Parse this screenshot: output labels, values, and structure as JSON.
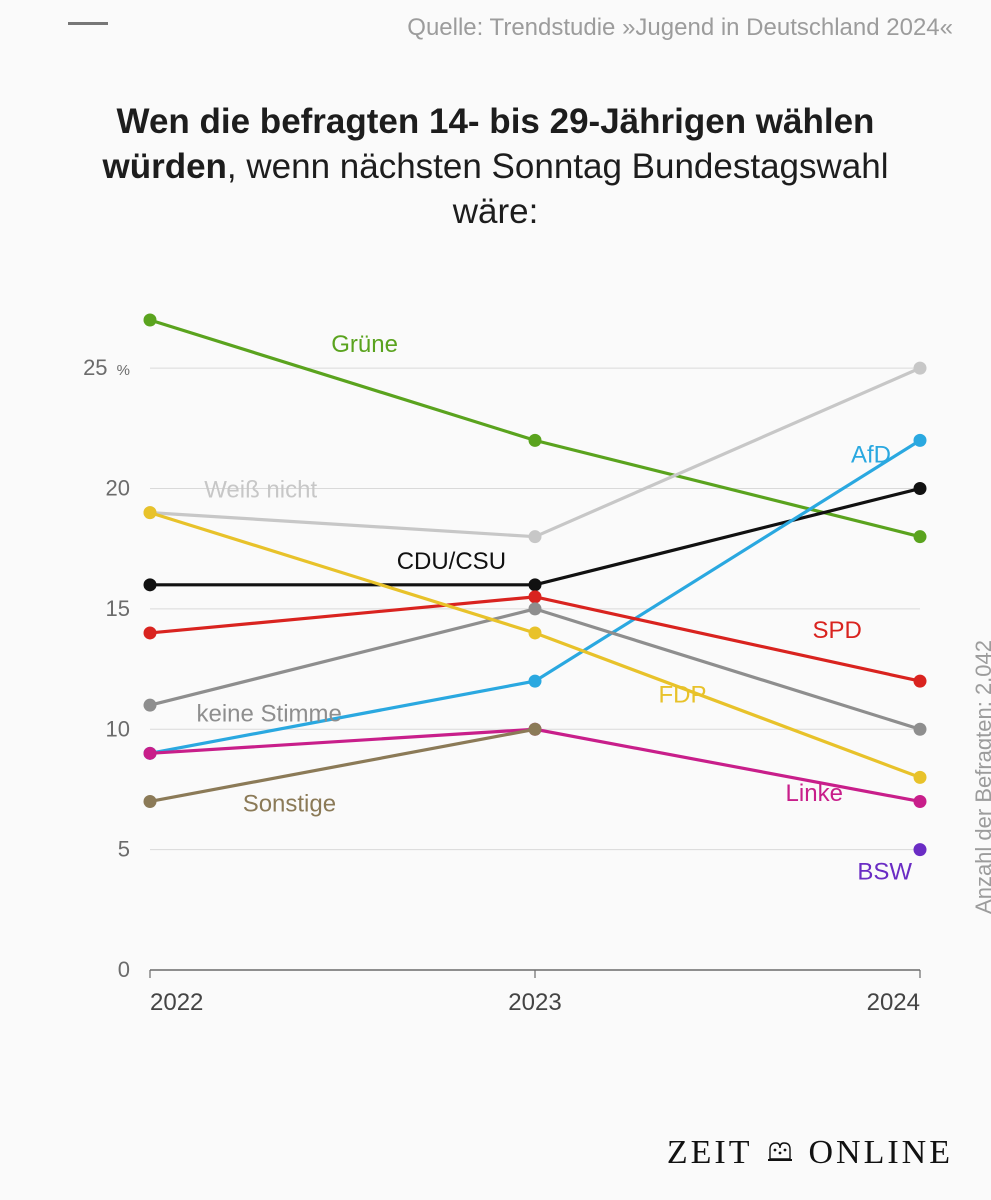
{
  "source_line": "Quelle: Trendstudie »Jugend in Deutschland 2024«",
  "title_bold": "Wen die befragten 14- bis 29-Jährigen wählen würden",
  "title_rest": ", wenn nächsten Sonntag Bundestagswahl wäre:",
  "side_note": "Anzahl der Befragten: 2.042",
  "brand_left": "ZEIT",
  "brand_right": "ONLINE",
  "chart": {
    "type": "line",
    "x_categories": [
      "2022",
      "2023",
      "2024"
    ],
    "ylim": [
      0,
      27
    ],
    "yticks": [
      0,
      5,
      10,
      15,
      20,
      25
    ],
    "ytick_labels": [
      "0",
      "5",
      "10",
      "15",
      "20",
      "25 "
    ],
    "percent_sign_after_first_tick": "%",
    "axis_text_color": "#6b6b6b",
    "grid_color": "#d9d9d9",
    "baseline_color": "#6b6b6b",
    "background_color": "#fafafa",
    "label_fontsize": 24,
    "axis_fontsize": 22,
    "line_width": 3.2,
    "marker_radius": 6.5,
    "series": [
      {
        "name": "Grüne",
        "color": "#5aa31e",
        "values": [
          27,
          22,
          18
        ],
        "label_at_index": 0.45,
        "label_dy": -22
      },
      {
        "name": "Weiß nicht",
        "color": "#c7c7c7",
        "values": [
          19,
          18,
          25
        ],
        "label_at_index": 0.12,
        "label_dy": -18
      },
      {
        "name": "CDU/CSU",
        "color": "#111111",
        "values": [
          16,
          16,
          20
        ],
        "label_at_index": 0.62,
        "label_dy": -16
      },
      {
        "name": "AfD",
        "color": "#2aa8e0",
        "values": [
          9,
          12,
          22
        ],
        "label_at_index": 1.8,
        "label_dy": -26
      },
      {
        "name": "SPD",
        "color": "#d9231f",
        "values": [
          14,
          15.5,
          12
        ],
        "label_at_index": 1.7,
        "label_dy": -18
      },
      {
        "name": "keine Stimme",
        "color": "#8e8e8e",
        "values": [
          11,
          15,
          10
        ],
        "label_at_index": 0.1,
        "label_dy": 26
      },
      {
        "name": "FDP",
        "color": "#e8c22a",
        "values": [
          19,
          14,
          8
        ],
        "label_at_index": 1.3,
        "label_dy": 26
      },
      {
        "name": "Linke",
        "color": "#c81e8a",
        "values": [
          9,
          10,
          7
        ],
        "label_at_index": 1.63,
        "label_dy": 26
      },
      {
        "name": "Sonstige",
        "color": "#8b7a57",
        "values": [
          7,
          10,
          null
        ],
        "label_at_index": 0.22,
        "label_dy": 26
      },
      {
        "name": "BSW",
        "color": "#6a2cc4",
        "values": [
          null,
          null,
          5
        ],
        "label_at_index": 2.0,
        "label_dy": 30,
        "label_align": "end"
      }
    ]
  }
}
